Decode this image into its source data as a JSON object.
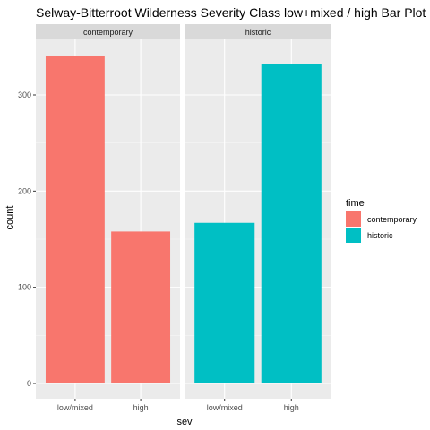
{
  "chart_data": {
    "type": "bar",
    "title": "Selway-Bitterroot Wilderness Severity Class low+mixed / high Bar Plot",
    "xlabel": "sev",
    "ylabel": "count",
    "ylim": [
      0,
      355
    ],
    "yticks": [
      0,
      100,
      200,
      300
    ],
    "categories": [
      "low/mixed",
      "high"
    ],
    "facets": [
      {
        "label": "contemporary",
        "fill": "#F8766D",
        "values": [
          341,
          158
        ]
      },
      {
        "label": "historic",
        "fill": "#00BFC4",
        "values": [
          167,
          332
        ]
      }
    ],
    "legend": {
      "title": "time",
      "position": "right",
      "entries": [
        {
          "label": "contemporary",
          "color": "#F8766D"
        },
        {
          "label": "historic",
          "color": "#00BFC4"
        }
      ]
    },
    "panel_background": "#EBEBEB",
    "strip_background": "#D9D9D9",
    "grid": true
  }
}
